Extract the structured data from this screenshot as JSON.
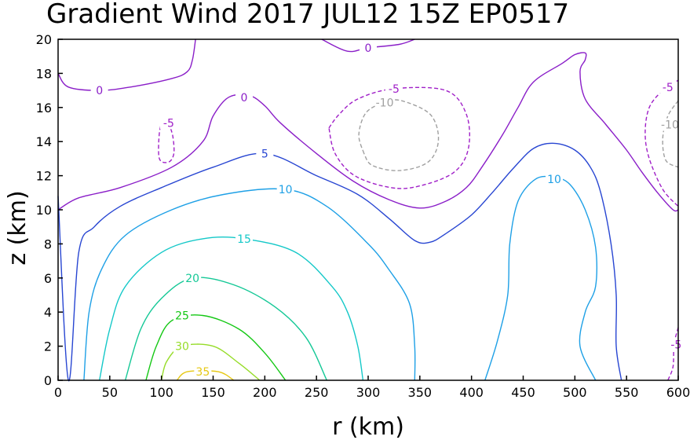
{
  "chart_data": {
    "type": "contour",
    "title": "Gradient Wind 2017 JUL12 15Z  EP0517",
    "xlabel": "r (km)",
    "ylabel": "z (km)",
    "xlim": [
      0,
      600
    ],
    "ylim": [
      0,
      20
    ],
    "xticks": [
      "0",
      "50",
      "100",
      "150",
      "200",
      "250",
      "300",
      "350",
      "400",
      "450",
      "500",
      "550",
      "600"
    ],
    "yticks": [
      "0",
      "2",
      "4",
      "6",
      "8",
      "10",
      "12",
      "14",
      "16",
      "18",
      "20"
    ],
    "grid": false,
    "colors": {
      "neg10": "#a0a0a0",
      "neg5": "#a020c8",
      "c0": "#8a1ec8",
      "c5": "#2846d2",
      "c10": "#1ea0e6",
      "c15": "#14c8c8",
      "c20": "#14c896",
      "c25": "#14c814",
      "c30": "#96dc28",
      "c35": "#e6c814"
    },
    "contours": [
      {
        "level": -10,
        "label": "-10",
        "dashed": true,
        "color": "neg10",
        "label_at": [
          316,
          16.3
        ],
        "points": [
          [
            296,
            13.3
          ],
          [
            291,
            14.4
          ],
          [
            298,
            15.7
          ],
          [
            316,
            16.3
          ],
          [
            332,
            16.4
          ],
          [
            360,
            15.6
          ],
          [
            368,
            14.1
          ],
          [
            358,
            12.8
          ],
          [
            330,
            12.3
          ],
          [
            304,
            12.6
          ],
          [
            296,
            13.3
          ]
        ]
      },
      {
        "level": -10,
        "label": "-10",
        "dashed": true,
        "color": "neg10",
        "label_at": [
          592,
          15
        ],
        "points": [
          [
            600,
            16.4
          ],
          [
            590,
            15.5
          ],
          [
            585,
            14.2
          ],
          [
            588,
            12.9
          ],
          [
            600,
            12.5
          ]
        ]
      },
      {
        "level": -5,
        "label": "-5",
        "dashed": true,
        "color": "neg5",
        "label_at": [
          325,
          17.1
        ],
        "points": [
          [
            262,
            14.8
          ],
          [
            272,
            15.6
          ],
          [
            290,
            16.5
          ],
          [
            325,
            17.1
          ],
          [
            375,
            17
          ],
          [
            395,
            15.6
          ],
          [
            397,
            13.6
          ],
          [
            383,
            12.2
          ],
          [
            350,
            11.4
          ],
          [
            322,
            11.3
          ],
          [
            287,
            12
          ],
          [
            268,
            13.3
          ],
          [
            262,
            14.8
          ]
        ]
      },
      {
        "level": -5,
        "label": "-5",
        "dashed": true,
        "color": "neg5",
        "label_at": [
          107,
          15.1
        ],
        "points": [
          [
            107,
            15.1
          ],
          [
            111,
            14.3
          ],
          [
            112,
            13.3
          ],
          [
            107,
            12.8
          ],
          [
            98,
            13
          ],
          [
            98,
            14.5
          ],
          [
            102,
            15.3
          ],
          [
            107,
            15.1
          ]
        ]
      },
      {
        "level": -5,
        "label": "-5",
        "dashed": true,
        "color": "neg5",
        "label_at": [
          590,
          17.2
        ],
        "points": [
          [
            600,
            17.6
          ],
          [
            585,
            17
          ],
          [
            572,
            16
          ],
          [
            568,
            14.5
          ],
          [
            572,
            13
          ],
          [
            585,
            11.2
          ],
          [
            600,
            10.2
          ]
        ]
      },
      {
        "level": -5,
        "label": "-5",
        "dashed": true,
        "color": "neg5",
        "label_at": [
          598,
          2.1
        ],
        "points": [
          [
            600,
            3.1
          ],
          [
            596,
            2.1
          ],
          [
            595,
            0.8
          ],
          [
            590,
            0
          ]
        ]
      },
      {
        "level": 0,
        "label": "0",
        "dashed": false,
        "color": "c0",
        "label_at": [
          40,
          17
        ],
        "points": [
          [
            0,
            18
          ],
          [
            10,
            17.2
          ],
          [
            40,
            17
          ],
          [
            70,
            17.2
          ],
          [
            110,
            17.7
          ],
          [
            125,
            18.1
          ],
          [
            130,
            18.8
          ],
          [
            133,
            20
          ]
        ]
      },
      {
        "level": 0,
        "label": "0",
        "dashed": false,
        "color": "c0",
        "label_at": [
          300,
          19.5
        ],
        "points": [
          [
            255,
            20
          ],
          [
            280,
            19.3
          ],
          [
            300,
            19.5
          ],
          [
            330,
            19.7
          ],
          [
            345,
            20
          ]
        ]
      },
      {
        "level": 0,
        "label": "0",
        "dashed": false,
        "color": "c0",
        "label_at": [
          180,
          16.6
        ],
        "points": [
          [
            0,
            10
          ],
          [
            20,
            10.7
          ],
          [
            60,
            11.3
          ],
          [
            110,
            12.5
          ],
          [
            140,
            14
          ],
          [
            150,
            15.5
          ],
          [
            165,
            16.6
          ],
          [
            185,
            16.7
          ],
          [
            200,
            16.1
          ],
          [
            215,
            15.1
          ],
          [
            250,
            13.3
          ],
          [
            285,
            11.7
          ],
          [
            320,
            10.6
          ],
          [
            350,
            10.1
          ],
          [
            375,
            10.5
          ],
          [
            395,
            11.3
          ],
          [
            410,
            12.5
          ],
          [
            430,
            14.4
          ],
          [
            445,
            16
          ],
          [
            460,
            17.5
          ],
          [
            488,
            18.6
          ],
          [
            500,
            19.1
          ],
          [
            510,
            19.2
          ],
          [
            510,
            18.8
          ],
          [
            505,
            18.1
          ],
          [
            510,
            16.5
          ],
          [
            530,
            15
          ],
          [
            550,
            13.5
          ],
          [
            565,
            12.2
          ],
          [
            580,
            11
          ],
          [
            595,
            10
          ],
          [
            600,
            10
          ]
        ]
      },
      {
        "level": 5,
        "label": "5",
        "dashed": false,
        "color": "c5",
        "label_at": [
          200,
          13.3
        ],
        "points": [
          [
            0,
            10.8
          ],
          [
            10,
            0
          ],
          [
            20,
            7.5
          ],
          [
            35,
            9
          ],
          [
            60,
            10.2
          ],
          [
            100,
            11.3
          ],
          [
            150,
            12.5
          ],
          [
            200,
            13.3
          ],
          [
            250,
            12
          ],
          [
            290,
            10.9
          ],
          [
            320,
            9.5
          ],
          [
            345,
            8.2
          ],
          [
            360,
            8.1
          ],
          [
            375,
            8.6
          ],
          [
            400,
            9.7
          ],
          [
            420,
            11
          ],
          [
            440,
            12.4
          ],
          [
            460,
            13.6
          ],
          [
            480,
            13.9
          ],
          [
            500,
            13.5
          ],
          [
            515,
            12.5
          ],
          [
            525,
            11
          ],
          [
            535,
            8
          ],
          [
            540,
            5
          ],
          [
            540,
            2
          ],
          [
            545,
            0
          ]
        ]
      },
      {
        "level": 10,
        "label": "10",
        "dashed": false,
        "color": "c10",
        "label_at": [
          220,
          11.2
        ],
        "points": [
          [
            25,
            0
          ],
          [
            30,
            4
          ],
          [
            42,
            6.5
          ],
          [
            65,
            8.5
          ],
          [
            110,
            10
          ],
          [
            160,
            10.9
          ],
          [
            220,
            11.2
          ],
          [
            260,
            10.2
          ],
          [
            300,
            8
          ],
          [
            320,
            6.5
          ],
          [
            340,
            4.5
          ],
          [
            345,
            2
          ],
          [
            345,
            0
          ]
        ]
      },
      {
        "level": 10,
        "label": "10",
        "dashed": false,
        "color": "c10",
        "label_at": [
          480,
          11.8
        ],
        "points": [
          [
            413,
            0
          ],
          [
            425,
            2.3
          ],
          [
            435,
            5
          ],
          [
            437,
            8
          ],
          [
            445,
            10.5
          ],
          [
            462,
            11.8
          ],
          [
            480,
            11.9
          ],
          [
            495,
            11.5
          ],
          [
            510,
            10
          ],
          [
            520,
            7.8
          ],
          [
            520,
            5.5
          ],
          [
            510,
            4
          ],
          [
            505,
            2
          ],
          [
            520,
            0
          ]
        ]
      },
      {
        "level": 15,
        "label": "15",
        "dashed": false,
        "color": "c15",
        "label_at": [
          180,
          8.3
        ],
        "points": [
          [
            40,
            0
          ],
          [
            50,
            3
          ],
          [
            65,
            5.5
          ],
          [
            100,
            7.5
          ],
          [
            140,
            8.3
          ],
          [
            180,
            8.3
          ],
          [
            230,
            7.5
          ],
          [
            265,
            5.5
          ],
          [
            280,
            4
          ],
          [
            290,
            2
          ],
          [
            295,
            0
          ]
        ]
      },
      {
        "level": 20,
        "label": "20",
        "dashed": false,
        "color": "c20",
        "label_at": [
          130,
          6
        ],
        "points": [
          [
            65,
            0
          ],
          [
            80,
            3
          ],
          [
            100,
            4.8
          ],
          [
            130,
            6
          ],
          [
            170,
            5.6
          ],
          [
            210,
            4.3
          ],
          [
            240,
            2.5
          ],
          [
            260,
            0
          ]
        ]
      },
      {
        "level": 25,
        "label": "25",
        "dashed": false,
        "color": "c25",
        "label_at": [
          120,
          3.8
        ],
        "points": [
          [
            85,
            0
          ],
          [
            95,
            2
          ],
          [
            110,
            3.5
          ],
          [
            140,
            3.8
          ],
          [
            175,
            3
          ],
          [
            200,
            1.6
          ],
          [
            220,
            0
          ]
        ]
      },
      {
        "level": 30,
        "label": "30",
        "dashed": false,
        "color": "c30",
        "label_at": [
          120,
          2
        ],
        "points": [
          [
            100,
            0
          ],
          [
            105,
            1.1
          ],
          [
            120,
            2
          ],
          [
            150,
            2
          ],
          [
            175,
            1
          ],
          [
            195,
            0
          ]
        ]
      },
      {
        "level": 35,
        "label": "35",
        "dashed": false,
        "color": "c35",
        "label_at": [
          140,
          0.5
        ],
        "points": [
          [
            115,
            0
          ],
          [
            125,
            0.5
          ],
          [
            155,
            0.5
          ],
          [
            170,
            0
          ]
        ]
      }
    ]
  }
}
